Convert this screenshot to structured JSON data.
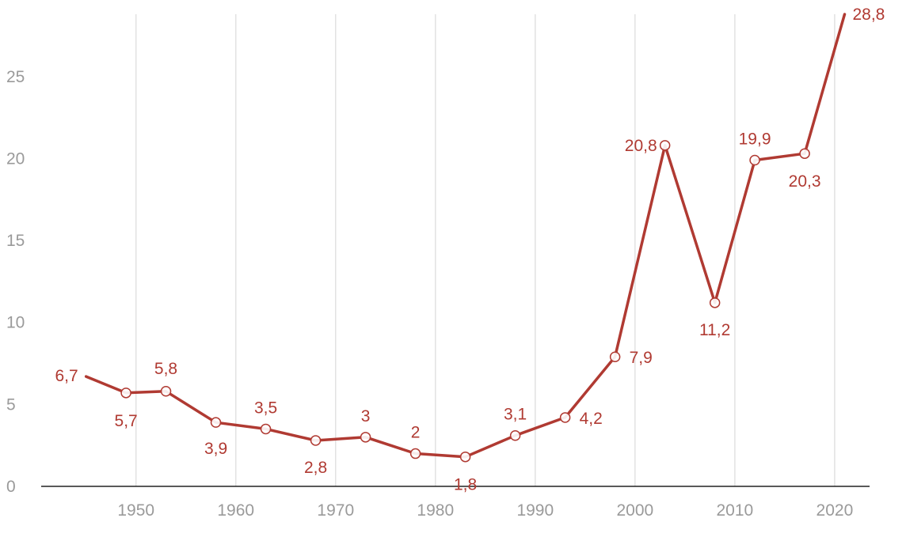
{
  "chart_data": {
    "type": "line",
    "title": "",
    "xlabel": "",
    "ylabel": "",
    "xlim": [
      1940.5,
      2023.5
    ],
    "ylim": [
      0,
      28.8
    ],
    "x_ticks": [
      1950,
      1960,
      1970,
      1980,
      1990,
      2000,
      2010,
      2020
    ],
    "y_ticks": [
      0,
      5,
      10,
      15,
      20,
      25
    ],
    "grid": "vertical",
    "legend": "none",
    "series": [
      {
        "color": "#b03a32",
        "points": [
          {
            "x": 1945,
            "y": 6.7,
            "label": "6,7"
          },
          {
            "x": 1949,
            "y": 5.7,
            "label": "5,7"
          },
          {
            "x": 1953,
            "y": 5.8,
            "label": "5,8"
          },
          {
            "x": 1958,
            "y": 3.9,
            "label": "3,9"
          },
          {
            "x": 1963,
            "y": 3.5,
            "label": "3,5"
          },
          {
            "x": 1968,
            "y": 2.8,
            "label": "2,8"
          },
          {
            "x": 1973,
            "y": 3.0,
            "label": "3"
          },
          {
            "x": 1978,
            "y": 2.0,
            "label": "2"
          },
          {
            "x": 1983,
            "y": 1.8,
            "label": "1,8"
          },
          {
            "x": 1988,
            "y": 3.1,
            "label": "3,1"
          },
          {
            "x": 1993,
            "y": 4.2,
            "label": "4,2"
          },
          {
            "x": 1998,
            "y": 7.9,
            "label": "7,9"
          },
          {
            "x": 2003,
            "y": 20.8,
            "label": "20,8"
          },
          {
            "x": 2008,
            "y": 11.2,
            "label": "11,2"
          },
          {
            "x": 2012,
            "y": 19.9,
            "label": "19,9"
          },
          {
            "x": 2017,
            "y": 20.3,
            "label": "20,3"
          },
          {
            "x": 2021,
            "y": 28.8,
            "label": "28,8"
          }
        ]
      }
    ]
  },
  "colors": {
    "line": "#b03a32",
    "grid": "#e2e2e2",
    "axis": "#222222",
    "tick_text": "#9a9a9a",
    "background": "#ffffff"
  }
}
